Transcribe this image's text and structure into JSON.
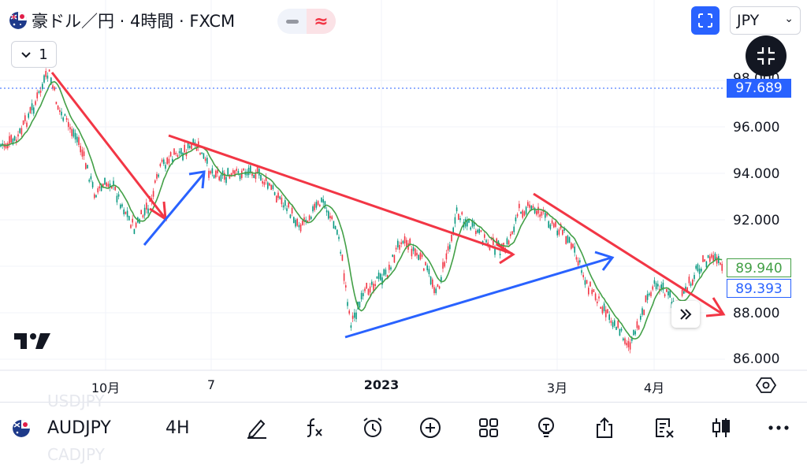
{
  "header": {
    "title": "豪ドル／円 · 4時間 · FXCM",
    "currency": "JPY",
    "collapse_count": "1"
  },
  "price_axis": {
    "ticks": [
      "98.000",
      "96.000",
      "94.000",
      "92.000",
      "90.000",
      "88.000",
      "86.000"
    ],
    "current_price": "97.689",
    "ma_green": "89.940",
    "ma_blue": "89.393"
  },
  "time_axis": {
    "labels": [
      "10月",
      "7",
      "2023",
      "3月",
      "4月"
    ]
  },
  "bottom": {
    "symbol": "AUDJPY",
    "timeframe": "4H",
    "ghost_top": "USDJPY",
    "ghost_bottom": "CADJPY"
  },
  "colors": {
    "up": "#089981",
    "down": "#f23645",
    "ma": "#43a047",
    "trend_red": "#f23645",
    "trend_blue": "#2962ff",
    "accent": "#2962ff"
  },
  "icons": [
    "fit-screen-icon",
    "chevron-down-icon",
    "minimize-icon",
    "tradingview-logo-icon",
    "scroll-right-icon",
    "settings-icon",
    "draw-icon",
    "indicator-fx-icon",
    "alert-clock-icon",
    "add-icon",
    "layout-grid-icon",
    "idea-bulb-icon",
    "share-icon",
    "object-tree-icon",
    "candle-chart-icon",
    "more-icon"
  ]
}
